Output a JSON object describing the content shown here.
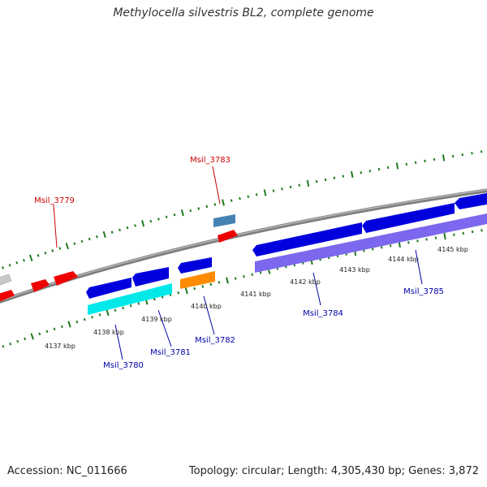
{
  "title": "Methylocella silvestris BL2, complete genome",
  "accession_text": "Accession: NC_011666",
  "summary_text": "Topology: circular; Length: 4,305,430 bp; Genes: 3,872",
  "colors": {
    "backbone": "#808080",
    "tick": "#1f7a1f",
    "forward_label": "#cc0000",
    "reverse_label": "#0000aa",
    "kbp_label": "#222222",
    "red_gene": "#ee0000",
    "blue_gene": "#0000dd",
    "cyan_gene": "#00eeee",
    "orange_gene": "#ff8c00",
    "steel_gene": "#4682b4",
    "purple_gene": "#7b68ee",
    "grey_gene": "#c0c0c0"
  },
  "kbp_labels": [
    "4137 kbp",
    "4138 kbp",
    "4139 kbp",
    "4140 kbp",
    "4141 kbp",
    "4142 kbp",
    "4143 kbp",
    "4144 kbp",
    "4145 kbp"
  ],
  "genes": [
    {
      "label": "Msil_3779",
      "strand": "forward",
      "color": "red_gene"
    },
    {
      "label": "Msil_3780",
      "strand": "reverse",
      "color": "blue_gene"
    },
    {
      "label": "Msil_3781",
      "strand": "reverse",
      "color": "blue_gene"
    },
    {
      "label": "Msil_3782",
      "strand": "reverse",
      "color": "blue_gene"
    },
    {
      "label": "Msil_3783",
      "strand": "forward",
      "color": "red_gene"
    },
    {
      "label": "Msil_3784",
      "strand": "reverse",
      "color": "blue_gene"
    },
    {
      "label": "Msil_3785",
      "strand": "reverse",
      "color": "blue_gene"
    }
  ]
}
